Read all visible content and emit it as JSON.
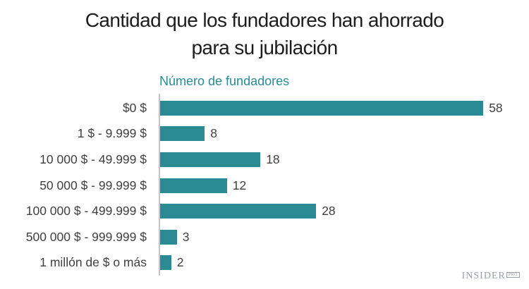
{
  "title": {
    "line1": "Cantidad que los fundadores han ahorrado",
    "line2": "para su jubilación"
  },
  "axis_title": "Número de fundadores",
  "logo": {
    "name": "INSIDER",
    "suffix": "PRO"
  },
  "colors": {
    "bar": "#2a8b95",
    "axis_title": "#2a8b95",
    "title": "#1d1d1d",
    "label": "#3f3f3f",
    "axis_line": "#c4c4c4",
    "logo": "#9aa0a8"
  },
  "chart_data": {
    "type": "bar",
    "orientation": "horizontal",
    "title": "Cantidad que los fundadores han ahorrado para su jubilación",
    "xlabel": "Número de fundadores",
    "categories": [
      "$0 $",
      "1 $ - 9.999 $",
      "10 000 $ - 49.999 $",
      "50 000 $ - 99.999 $",
      "100 000 $ - 499.999 $",
      "500 000 $ - 999.999 $",
      "1 millón de $ o más"
    ],
    "values": [
      58,
      8,
      18,
      12,
      28,
      3,
      2
    ],
    "value_labels_shown": true,
    "xlim": [
      0,
      65
    ],
    "grid": false,
    "legend": false
  }
}
